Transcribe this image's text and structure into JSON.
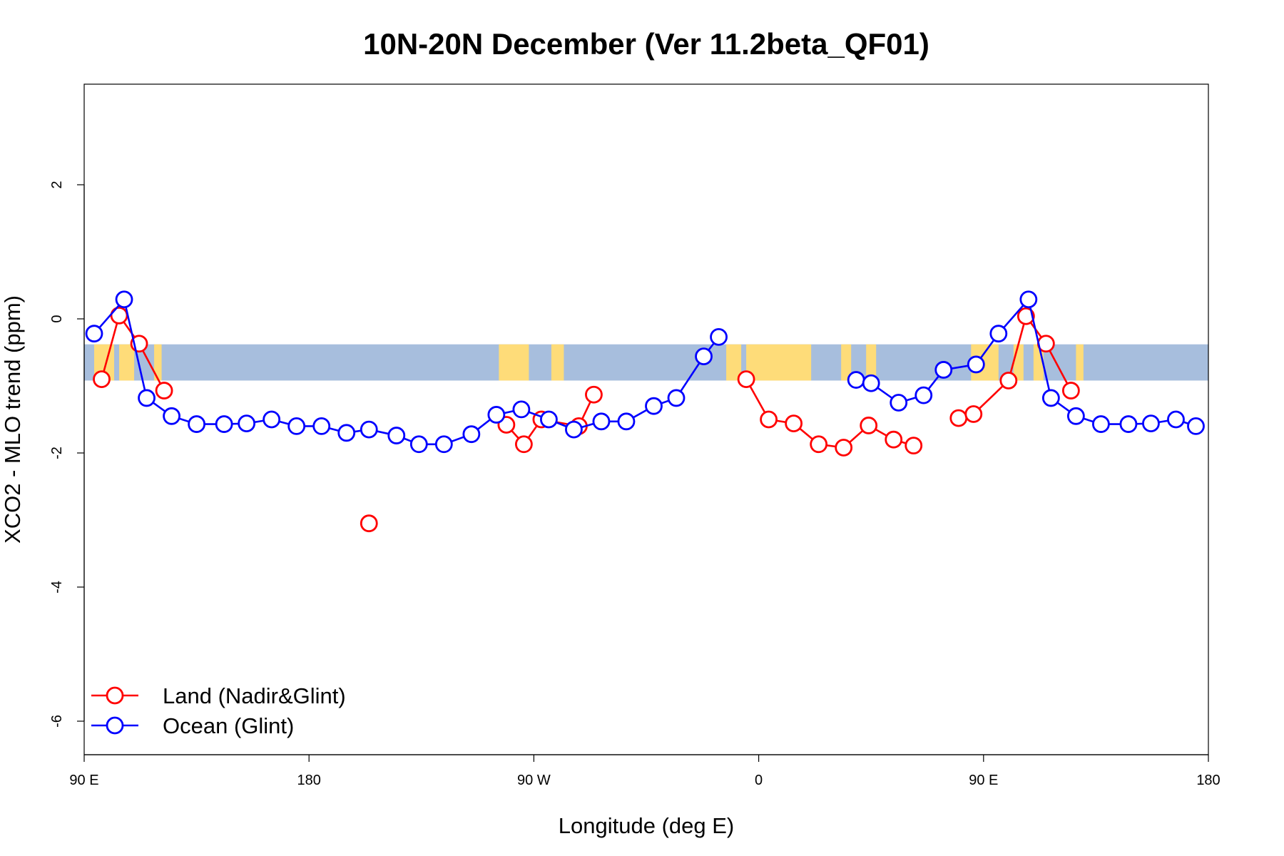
{
  "chart_data": {
    "type": "line",
    "title": "10N-20N December (Ver 11.2beta_QF01)",
    "xlabel": "Longitude (deg E)",
    "ylabel": "XCO2 - MLO trend (ppm)",
    "xlim": [
      90,
      540
    ],
    "ylim": [
      -6.5,
      3.5
    ],
    "x_ticks": [
      {
        "value": 90,
        "label": "90 E"
      },
      {
        "value": 180,
        "label": "180"
      },
      {
        "value": 270,
        "label": "90 W"
      },
      {
        "value": 360,
        "label": "0"
      },
      {
        "value": 450,
        "label": "90 E"
      },
      {
        "value": 540,
        "label": "180"
      }
    ],
    "y_ticks": [
      {
        "value": 2,
        "label": "2"
      },
      {
        "value": 0,
        "label": "0"
      },
      {
        "value": -2,
        "label": "-2"
      },
      {
        "value": -4,
        "label": "-4"
      },
      {
        "value": -6,
        "label": "-6"
      }
    ],
    "grid": false,
    "legend_position": "bottom-left",
    "background_band": {
      "y_range": [
        -0.92,
        -0.38
      ],
      "ocean_color": "#a7bedd",
      "land_color": "#fedc79",
      "land_x_ranges": [
        [
          94,
          102
        ],
        [
          104,
          110
        ],
        [
          118,
          121
        ],
        [
          256,
          268
        ],
        [
          277,
          282
        ],
        [
          347,
          353
        ],
        [
          355,
          381
        ],
        [
          393,
          397
        ],
        [
          403,
          407
        ],
        [
          445,
          456
        ],
        [
          462,
          466
        ],
        [
          470,
          474
        ],
        [
          487,
          490
        ]
      ]
    },
    "series": [
      {
        "name": "Land (Nadir&Glint)",
        "color": "#ff0000",
        "segments": [
          [
            [
              97,
              -0.9
            ],
            [
              104,
              0.05
            ],
            [
              112,
              -0.37
            ],
            [
              122,
              -1.07
            ]
          ],
          [
            [
              204,
              -3.05
            ]
          ],
          [
            [
              259,
              -1.58
            ],
            [
              266,
              -1.87
            ],
            [
              273,
              -1.5
            ],
            [
              288,
              -1.6
            ],
            [
              294,
              -1.13
            ]
          ],
          [
            [
              355,
              -0.9
            ],
            [
              364,
              -1.5
            ],
            [
              374,
              -1.56
            ],
            [
              384,
              -1.87
            ],
            [
              394,
              -1.92
            ],
            [
              404,
              -1.59
            ],
            [
              414,
              -1.8
            ],
            [
              422,
              -1.89
            ]
          ],
          [
            [
              440,
              -1.48
            ],
            [
              446,
              -1.42
            ],
            [
              460,
              -0.92
            ],
            [
              467,
              0.04
            ],
            [
              475,
              -0.37
            ],
            [
              485,
              -1.07
            ]
          ]
        ]
      },
      {
        "name": "Ocean (Glint)",
        "color": "#0000ff",
        "segments": [
          [
            [
              94,
              -0.22
            ],
            [
              106,
              0.29
            ],
            [
              115,
              -1.18
            ],
            [
              125,
              -1.45
            ],
            [
              135,
              -1.57
            ],
            [
              146,
              -1.57
            ],
            [
              155,
              -1.56
            ],
            [
              165,
              -1.5
            ],
            [
              175,
              -1.6
            ],
            [
              185,
              -1.6
            ],
            [
              195,
              -1.7
            ],
            [
              204,
              -1.65
            ],
            [
              215,
              -1.74
            ],
            [
              224,
              -1.87
            ],
            [
              234,
              -1.87
            ],
            [
              245,
              -1.72
            ],
            [
              255,
              -1.43
            ],
            [
              265,
              -1.35
            ],
            [
              276,
              -1.5
            ],
            [
              286,
              -1.65
            ],
            [
              297,
              -1.53
            ],
            [
              307,
              -1.53
            ],
            [
              318,
              -1.3
            ],
            [
              327,
              -1.18
            ],
            [
              338,
              -0.56
            ],
            [
              344,
              -0.27
            ]
          ],
          [
            [
              399,
              -0.91
            ],
            [
              405,
              -0.96
            ],
            [
              416,
              -1.25
            ],
            [
              426,
              -1.14
            ],
            [
              434,
              -0.76
            ],
            [
              447,
              -0.68
            ],
            [
              456,
              -0.22
            ],
            [
              468,
              0.29
            ],
            [
              477,
              -1.18
            ],
            [
              487,
              -1.45
            ],
            [
              497,
              -1.57
            ],
            [
              508,
              -1.57
            ],
            [
              517,
              -1.56
            ],
            [
              527,
              -1.5
            ],
            [
              535,
              -1.6
            ]
          ]
        ]
      }
    ]
  }
}
